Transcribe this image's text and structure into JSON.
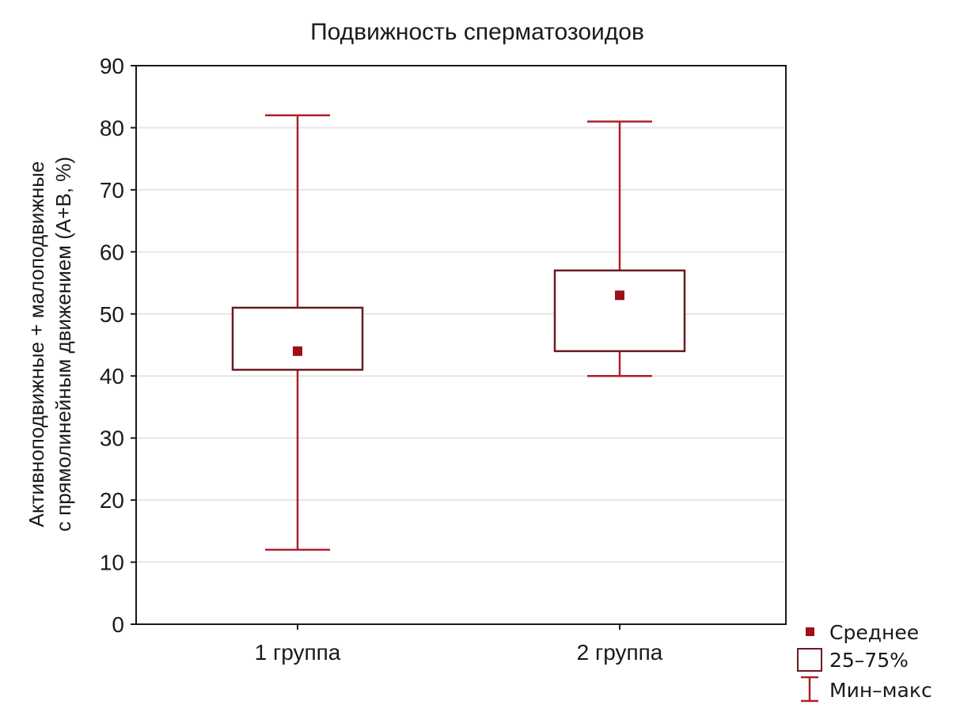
{
  "chart_data": {
    "type": "box",
    "title": "Подвижность сперматозоидов",
    "ylabel_lines": [
      "Активноподвижные + малоподвижные",
      "с прямолинейным движением (А+В, %)"
    ],
    "xlabel": "",
    "ylim": [
      0,
      90
    ],
    "yticks": [
      0,
      10,
      20,
      30,
      40,
      50,
      60,
      70,
      80,
      90
    ],
    "grid": true,
    "categories": [
      "1 группа",
      "2 группа"
    ],
    "groups": [
      {
        "category": "1 группа",
        "min": 12,
        "q1": 41,
        "mean": 44,
        "q3": 51,
        "max": 82
      },
      {
        "category": "2 группа",
        "min": 40,
        "q1": 44,
        "mean": 53,
        "q3": 57,
        "max": 81
      }
    ],
    "legend": {
      "position": "bottom-right",
      "items": [
        {
          "key": "mean",
          "label": "Среднее"
        },
        {
          "key": "box",
          "label": "25–75%"
        },
        {
          "key": "whisker",
          "label": "Мин–макс"
        }
      ]
    },
    "colors": {
      "whisker": "#b0202a",
      "box": "#6b1a22",
      "mean": "#9e0f17",
      "grid": "#e6e6e6",
      "axis": "#1a1a1a"
    }
  }
}
